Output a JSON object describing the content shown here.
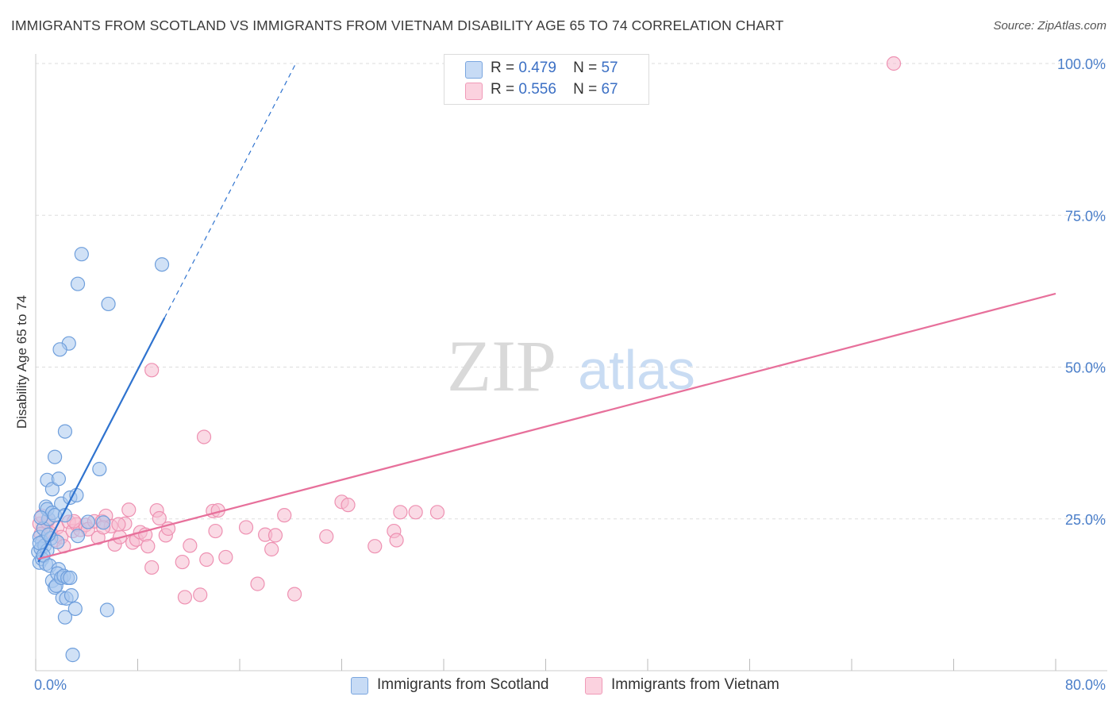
{
  "title": "IMMIGRANTS FROM SCOTLAND VS IMMIGRANTS FROM VIETNAM DISABILITY AGE 65 TO 74 CORRELATION CHART",
  "source": "Source: ZipAtlas.com",
  "watermark": {
    "zip": "ZIP",
    "atlas": "atlas"
  },
  "colors": {
    "scotland_fill": "#a9c8ef",
    "scotland_stroke": "#6f9fdc",
    "scotland_line": "#2f73cf",
    "vietnam_fill": "#f6bcd0",
    "vietnam_stroke": "#ee91b2",
    "vietnam_line": "#e7709b",
    "axis_text": "#4a7ec9",
    "grid": "#dddddd"
  },
  "legend": {
    "rows": [
      {
        "r_label": "R =",
        "r_value": "0.479",
        "n_label": "N =",
        "n_value": "57"
      },
      {
        "r_label": "R =",
        "r_value": "0.556",
        "n_label": "N =",
        "n_value": "67"
      }
    ]
  },
  "bottom_legend": [
    "Immigrants from Scotland",
    "Immigrants from Vietnam"
  ],
  "chart_data": {
    "type": "scatter",
    "title": "IMMIGRANTS FROM SCOTLAND VS IMMIGRANTS FROM VIETNAM DISABILITY AGE 65 TO 74 CORRELATION CHART",
    "xlabel": "",
    "ylabel": "Disability Age 65 to 74",
    "xlim": [
      0,
      80
    ],
    "ylim": [
      0,
      103
    ],
    "x_tick_labels": [
      "0.0%",
      "80.0%"
    ],
    "y_ticks": [
      25,
      50,
      75,
      100
    ],
    "y_tick_labels": [
      "25.0%",
      "50.0%",
      "75.0%",
      "100.0%"
    ],
    "grid": true,
    "series": [
      {
        "name": "Immigrants from Scotland",
        "r": 0.479,
        "n": 57,
        "trend": {
          "x0": 0.2,
          "y0": 17.9,
          "x1": 10.1,
          "y1": 58.1,
          "dash_x1": 20.4,
          "dash_y1": 100.0
        },
        "points": [
          [
            0.3,
            22.0
          ],
          [
            0.2,
            19.6
          ],
          [
            0.5,
            21.2
          ],
          [
            0.3,
            17.8
          ],
          [
            0.4,
            20.1
          ],
          [
            0.6,
            23.4
          ],
          [
            0.7,
            20.6
          ],
          [
            0.9,
            19.8
          ],
          [
            0.5,
            18.4
          ],
          [
            0.8,
            17.6
          ],
          [
            0.3,
            21.0
          ],
          [
            0.6,
            19.0
          ],
          [
            1.2,
            21.8
          ],
          [
            1.0,
            25.0
          ],
          [
            0.8,
            27.0
          ],
          [
            0.9,
            26.6
          ],
          [
            1.3,
            26.0
          ],
          [
            1.5,
            25.6
          ],
          [
            1.7,
            21.2
          ],
          [
            1.1,
            17.3
          ],
          [
            1.3,
            14.8
          ],
          [
            1.5,
            13.7
          ],
          [
            1.6,
            14.0
          ],
          [
            1.8,
            16.7
          ],
          [
            1.7,
            16.0
          ],
          [
            2.0,
            15.3
          ],
          [
            2.2,
            15.6
          ],
          [
            2.5,
            15.3
          ],
          [
            2.7,
            15.3
          ],
          [
            2.1,
            12.0
          ],
          [
            2.3,
            8.8
          ],
          [
            2.4,
            11.9
          ],
          [
            2.8,
            12.4
          ],
          [
            3.1,
            10.2
          ],
          [
            2.9,
            2.6
          ],
          [
            0.9,
            31.4
          ],
          [
            1.3,
            29.9
          ],
          [
            1.8,
            31.6
          ],
          [
            2.0,
            27.5
          ],
          [
            2.7,
            28.5
          ],
          [
            3.2,
            28.9
          ],
          [
            2.3,
            25.6
          ],
          [
            1.5,
            35.2
          ],
          [
            2.3,
            39.4
          ],
          [
            2.6,
            53.9
          ],
          [
            1.9,
            52.9
          ],
          [
            3.3,
            63.7
          ],
          [
            3.6,
            68.6
          ],
          [
            5.7,
            60.4
          ],
          [
            9.9,
            66.9
          ],
          [
            5.0,
            33.2
          ],
          [
            5.6,
            10.0
          ],
          [
            4.1,
            24.5
          ],
          [
            5.3,
            24.4
          ],
          [
            1.0,
            22.4
          ],
          [
            0.4,
            25.2
          ],
          [
            3.3,
            22.2
          ]
        ]
      },
      {
        "name": "Immigrants from Vietnam",
        "r": 0.556,
        "n": 67,
        "trend": {
          "x0": 0.2,
          "y0": 18.4,
          "x1": 80.0,
          "y1": 62.1
        },
        "points": [
          [
            0.3,
            24.2
          ],
          [
            0.6,
            23.5
          ],
          [
            0.4,
            22.5
          ],
          [
            0.9,
            24.5
          ],
          [
            1.2,
            22.6
          ],
          [
            1.5,
            21.5
          ],
          [
            1.7,
            23.6
          ],
          [
            2.0,
            22.0
          ],
          [
            2.2,
            20.5
          ],
          [
            2.6,
            24.5
          ],
          [
            2.9,
            23.0
          ],
          [
            3.2,
            24.1
          ],
          [
            3.5,
            23.2
          ],
          [
            3.9,
            24.0
          ],
          [
            4.1,
            23.3
          ],
          [
            4.6,
            24.6
          ],
          [
            4.9,
            21.9
          ],
          [
            5.2,
            24.6
          ],
          [
            5.5,
            25.5
          ],
          [
            5.9,
            23.8
          ],
          [
            6.2,
            20.8
          ],
          [
            6.6,
            22.0
          ],
          [
            7.0,
            24.2
          ],
          [
            7.3,
            26.5
          ],
          [
            7.6,
            21.1
          ],
          [
            7.9,
            21.6
          ],
          [
            8.2,
            22.8
          ],
          [
            8.6,
            22.4
          ],
          [
            8.8,
            20.5
          ],
          [
            9.1,
            17.0
          ],
          [
            9.5,
            26.4
          ],
          [
            9.7,
            25.1
          ],
          [
            10.2,
            22.3
          ],
          [
            10.4,
            23.4
          ],
          [
            11.5,
            17.9
          ],
          [
            11.7,
            12.1
          ],
          [
            12.1,
            20.6
          ],
          [
            12.9,
            12.5
          ],
          [
            13.2,
            38.5
          ],
          [
            13.4,
            18.3
          ],
          [
            13.9,
            26.3
          ],
          [
            14.1,
            23.0
          ],
          [
            14.3,
            26.4
          ],
          [
            14.9,
            18.7
          ],
          [
            16.5,
            23.6
          ],
          [
            17.4,
            14.3
          ],
          [
            18.0,
            22.4
          ],
          [
            18.5,
            20.0
          ],
          [
            18.8,
            22.3
          ],
          [
            19.5,
            25.6
          ],
          [
            20.3,
            12.6
          ],
          [
            22.8,
            22.1
          ],
          [
            24.0,
            27.8
          ],
          [
            24.5,
            27.3
          ],
          [
            26.6,
            20.5
          ],
          [
            28.1,
            23.0
          ],
          [
            28.3,
            21.5
          ],
          [
            28.6,
            26.1
          ],
          [
            29.8,
            26.1
          ],
          [
            31.5,
            26.1
          ],
          [
            9.1,
            49.5
          ],
          [
            67.3,
            100.0
          ],
          [
            5.3,
            23.6
          ],
          [
            3.0,
            24.6
          ],
          [
            1.0,
            24.9
          ],
          [
            0.5,
            25.5
          ],
          [
            6.5,
            24.1
          ]
        ]
      }
    ]
  }
}
